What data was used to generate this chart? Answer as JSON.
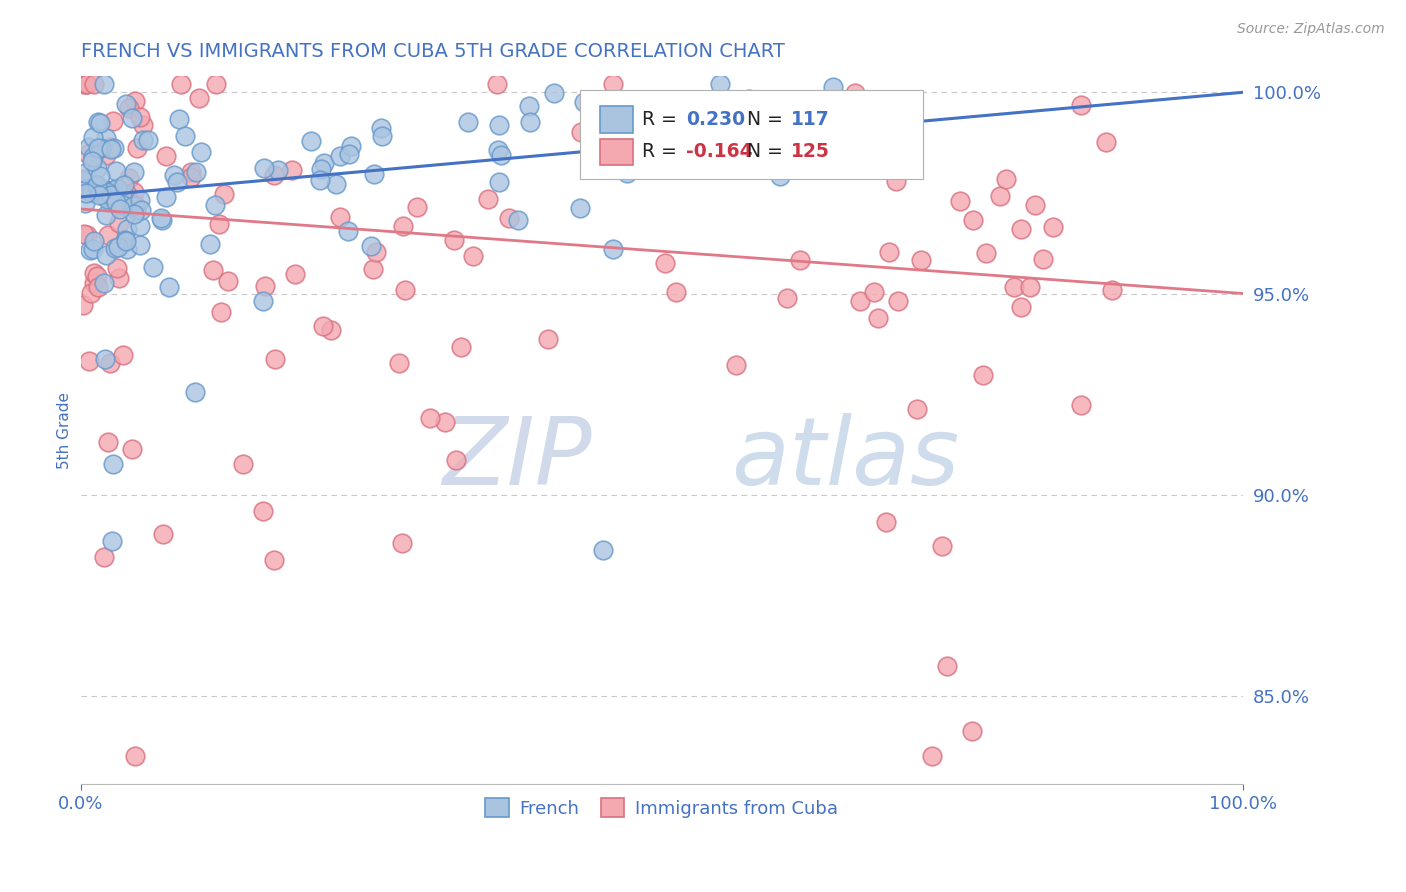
{
  "title": "FRENCH VS IMMIGRANTS FROM CUBA 5TH GRADE CORRELATION CHART",
  "source_text": "Source: ZipAtlas.com",
  "ylabel": "5th Grade",
  "watermark_zip": "ZIP",
  "watermark_atlas": "atlas",
  "xlim": [
    0.0,
    1.0
  ],
  "ylim": [
    0.828,
    1.004
  ],
  "yticks": [
    0.85,
    0.9,
    0.95,
    1.0
  ],
  "ytick_labels": [
    "85.0%",
    "90.0%",
    "95.0%",
    "100.0%"
  ],
  "xtick_labels": [
    "0.0%",
    "100.0%"
  ],
  "french_color": "#aac4e0",
  "french_edge": "#6699cc",
  "cuba_color": "#f4a8b0",
  "cuba_edge": "#d97080",
  "french_R": 0.23,
  "french_N": 117,
  "cuba_R": -0.164,
  "cuba_N": 125,
  "title_color": "#4472c4",
  "axis_color": "#4472c4",
  "grid_color": "#c8c8c8",
  "trend_blue": "#4472c4",
  "trend_pink": "#e07888",
  "french_trend_x0": 0.0,
  "french_trend_y0": 0.974,
  "french_trend_x1": 1.0,
  "french_trend_y1": 1.0,
  "cuba_trend_x0": 0.0,
  "cuba_trend_y0": 0.971,
  "cuba_trend_x1": 1.0,
  "cuba_trend_y1": 0.95
}
